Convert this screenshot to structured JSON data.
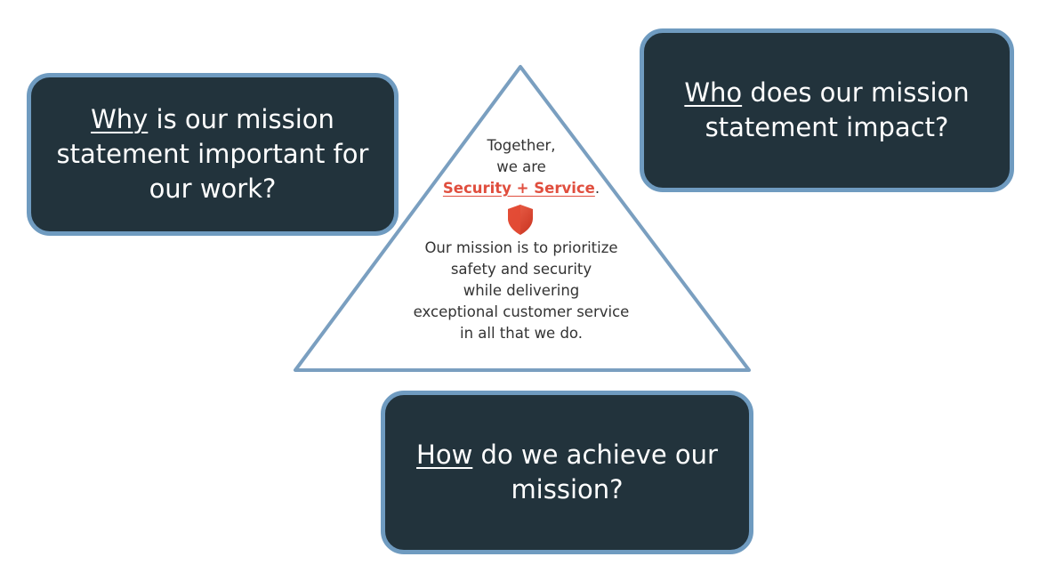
{
  "questions": {
    "why": {
      "keyword": "Why",
      "rest_line1": " is our mission",
      "line2": "statement important for",
      "line3": "our work?"
    },
    "who": {
      "keyword": "Who",
      "rest_line1": " does our mission",
      "line2": "statement impact?"
    },
    "how": {
      "keyword": "How",
      "rest_line1": " do we achieve our",
      "line2": "mission?"
    }
  },
  "triangle": {
    "line1": "Together,",
    "line2": "we are",
    "brand": "Security + Service",
    "brand_suffix": ".",
    "icon": "shield-icon",
    "body": [
      "Our mission is to prioritize",
      "safety and security",
      "while delivering",
      "exceptional customer service",
      "in all that we do."
    ]
  },
  "colors": {
    "box_fill": "#22333c",
    "box_border": "#6f9bc0",
    "brand_red": "#e04e3e",
    "triangle_stroke": "#7a9fc0"
  }
}
